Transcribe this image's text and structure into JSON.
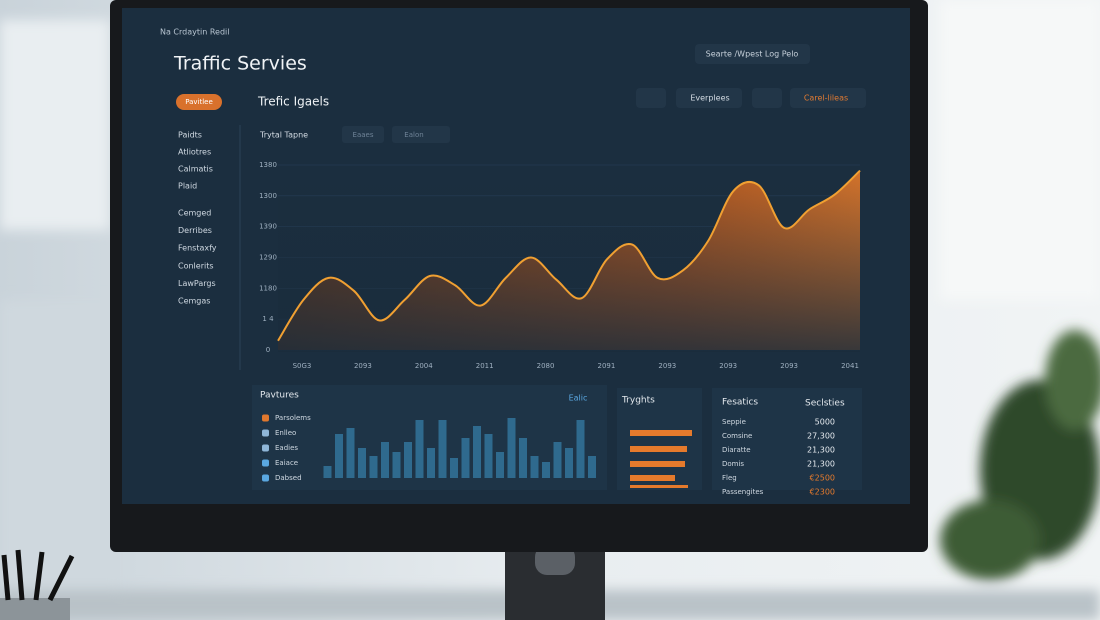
{
  "header": {
    "brand": "Na Crdaytin Redil",
    "title": "Traffic Servies",
    "search": "Searte /Wpest Log Pelo"
  },
  "sidebar": {
    "button": "Pavitlee",
    "items": [
      "Paidts",
      "Atliotres",
      "Calmatis",
      "Plaid",
      "Cemged",
      "Derribes",
      "Fenstaxfy",
      "Conlerits",
      "LawPargs",
      "Cemgas"
    ]
  },
  "main_panel": {
    "title": "Trefic Igaels",
    "controls": [
      "Everplees",
      "Carel-lileas"
    ],
    "filters": [
      "Trytal Tapne",
      "Eaaes",
      "Ealon"
    ],
    "area_chart": {
      "y_labels": [
        "1380",
        "1300",
        "1390",
        "1290",
        "1180",
        "1 4",
        "0"
      ],
      "x_labels": [
        "S0G3",
        "2093",
        "2004",
        "2011",
        "2080",
        "2091",
        "2093",
        "2093",
        "2093",
        "2041"
      ],
      "values": [
        5,
        27,
        39,
        32,
        16,
        27,
        40,
        35,
        24,
        39,
        50,
        38,
        28,
        49,
        57,
        39,
        43,
        59,
        86,
        89,
        66,
        76,
        84,
        97
      ]
    }
  },
  "features_panel": {
    "title": "Pavtures",
    "dropdown": "Ealic",
    "items": [
      "Parsolems",
      "Enlleo",
      "Eadies",
      "Eaiace",
      "Dabsed"
    ],
    "bars": [
      12,
      44,
      50,
      30,
      22,
      36,
      26,
      36,
      58,
      30,
      58,
      20,
      40,
      52,
      44,
      26,
      60,
      40,
      22,
      16,
      36,
      30,
      58,
      22
    ]
  },
  "insights_panel": {
    "title": "Tryghts",
    "bars": [
      62,
      57,
      55,
      45,
      58
    ]
  },
  "stats_panel": {
    "headers": [
      "Fesatics",
      "Seclsties"
    ],
    "rows": [
      [
        "Seppie",
        "5000"
      ],
      [
        "Comsine",
        "27,300"
      ],
      [
        "Diaratte",
        "21,300"
      ],
      [
        "Domis",
        "21,300"
      ],
      [
        "Fleg",
        "€2500"
      ],
      [
        "Passengites",
        "€2300"
      ]
    ]
  }
}
